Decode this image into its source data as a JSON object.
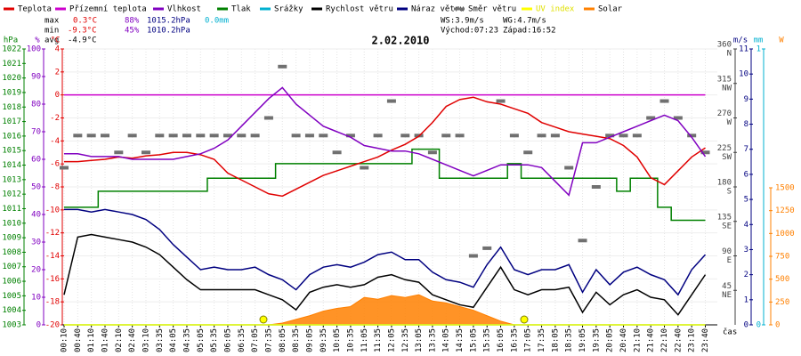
{
  "chart_data": {
    "type": "line",
    "title": "2.02.2010",
    "x_title": "čas",
    "grid": true,
    "categories": [
      "00:10",
      "00:40",
      "01:10",
      "01:40",
      "02:10",
      "02:40",
      "03:10",
      "03:35",
      "04:05",
      "04:35",
      "05:05",
      "05:35",
      "06:05",
      "06:35",
      "07:05",
      "07:35",
      "08:05",
      "08:35",
      "09:05",
      "09:35",
      "10:05",
      "10:35",
      "11:05",
      "11:35",
      "12:05",
      "12:35",
      "13:05",
      "13:35",
      "14:05",
      "14:35",
      "15:05",
      "15:35",
      "16:05",
      "16:35",
      "17:05",
      "17:35",
      "18:05",
      "18:35",
      "19:05",
      "19:35",
      "20:05",
      "20:40",
      "21:10",
      "21:40",
      "22:10",
      "22:40",
      "23:10",
      "23:40"
    ],
    "stats": {
      "max": {
        "label": "max",
        "temp": "0.3°C",
        "hum": "88%",
        "press": "1015.2hPa",
        "rain": "0.0mm"
      },
      "min": {
        "label": "min",
        "temp": "-9.3°C",
        "hum": "45%",
        "press": "1010.2hPa"
      },
      "avg": {
        "label": "avg",
        "temp": "-4.9°C"
      },
      "ws": "WS:3.9m/s",
      "wg": "WG:4.7m/s",
      "sunrise": "Východ:07:23",
      "sunset": "Západ:16:52"
    },
    "axes": {
      "hpa": {
        "title": "hPa",
        "color": "#008000",
        "ylim": [
          1003,
          1022
        ],
        "yticks": [
          1003,
          1004,
          1005,
          1006,
          1007,
          1008,
          1009,
          1010,
          1011,
          1012,
          1013,
          1014,
          1015,
          1016,
          1017,
          1018,
          1019,
          1020,
          1021,
          1022
        ]
      },
      "pct": {
        "title": "%",
        "color": "#8000c0",
        "ylim": [
          0,
          100
        ],
        "yticks": [
          0,
          10,
          20,
          30,
          40,
          50,
          60,
          70,
          80,
          90,
          100
        ]
      },
      "c": {
        "title": "°C",
        "color": "#e00000",
        "ylim": [
          -20,
          4
        ],
        "yticks": [
          -20,
          -18,
          -16,
          -14,
          -12,
          -10,
          -8,
          -6,
          -4,
          -2,
          0,
          2,
          4
        ]
      },
      "dir": {
        "title": "",
        "color": "#404040",
        "ylim": [
          0,
          360
        ],
        "yticks": [
          45,
          90,
          135,
          180,
          225,
          270,
          315,
          360
        ],
        "names": [
          "NE",
          "E",
          "SE",
          "S",
          "SW",
          "W",
          "NW",
          "N"
        ]
      },
      "ms": {
        "title": "m/s",
        "color": "#000080",
        "ylim": [
          0,
          11
        ],
        "yticks": [
          0,
          1,
          2,
          3,
          4,
          5,
          6,
          7,
          8,
          9,
          10,
          11
        ]
      },
      "mm": {
        "title": "mm",
        "color": "#00b0d0",
        "ylim": [
          0,
          1
        ],
        "yticks": [
          0,
          1
        ]
      },
      "w": {
        "title": "W",
        "color": "#ff8000",
        "ylim": [
          0,
          1500
        ],
        "yticks": [
          0,
          250,
          500,
          750,
          1000,
          1250,
          1500
        ]
      }
    },
    "series": [
      {
        "name": "Teplota",
        "color": "#e00000",
        "axis": "c",
        "style": "line",
        "values": [
          -5.8,
          -5.8,
          -5.7,
          -5.6,
          -5.4,
          -5.5,
          -5.3,
          -5.2,
          -5.0,
          -5.0,
          -5.2,
          -5.6,
          -6.8,
          -7.4,
          -8.0,
          -8.6,
          -8.8,
          -8.2,
          -7.6,
          -7.0,
          -6.6,
          -6.2,
          -5.8,
          -5.4,
          -4.8,
          -4.3,
          -3.6,
          -2.4,
          -1.0,
          -0.4,
          -0.2,
          -0.6,
          -0.8,
          -1.2,
          -1.6,
          -2.4,
          -2.8,
          -3.2,
          -3.4,
          -3.6,
          -3.8,
          -4.4,
          -5.4,
          -7.2,
          -7.8,
          -6.6,
          -5.4,
          -4.6
        ]
      },
      {
        "name": "Přízemní teplota",
        "color": "#cc00cc",
        "axis": "c",
        "style": "line",
        "values": [
          0,
          0,
          0,
          0,
          0,
          0,
          0,
          0,
          0,
          0,
          0,
          0,
          0,
          0,
          0,
          0,
          0,
          0,
          0,
          0,
          0,
          0,
          0,
          0,
          0,
          0,
          0,
          0,
          0,
          0,
          0,
          0,
          0,
          0,
          0,
          0,
          0,
          0,
          0,
          0,
          0,
          0,
          0,
          0,
          0,
          0,
          0,
          0
        ]
      },
      {
        "name": "Vlhkost",
        "color": "#8000c0",
        "axis": "pct",
        "style": "line",
        "values": [
          62,
          62,
          61,
          61,
          61,
          60,
          60,
          60,
          60,
          61,
          62,
          64,
          67,
          72,
          77,
          82,
          86,
          80,
          76,
          72,
          70,
          68,
          65,
          64,
          63,
          63,
          62,
          60,
          58,
          56,
          54,
          56,
          58,
          58,
          58,
          57,
          52,
          47,
          66,
          66,
          68,
          70,
          72,
          74,
          76,
          74,
          68,
          61
        ]
      },
      {
        "name": "Tlak",
        "color": "#008000",
        "axis": "hpa",
        "style": "step",
        "values": [
          1011.1,
          1011.1,
          1011.1,
          1012.2,
          1012.2,
          1012.2,
          1012.2,
          1012.2,
          1012.2,
          1012.2,
          1012.2,
          1013.1,
          1013.1,
          1013.1,
          1013.1,
          1013.1,
          1014.1,
          1014.1,
          1014.1,
          1014.1,
          1014.1,
          1014.1,
          1014.1,
          1014.1,
          1014.1,
          1014.1,
          1015.1,
          1015.1,
          1013.1,
          1013.1,
          1013.1,
          1013.1,
          1013.1,
          1014.1,
          1013.1,
          1013.1,
          1013.1,
          1013.1,
          1013.1,
          1013.1,
          1013.1,
          1012.2,
          1013.1,
          1013.1,
          1011.1,
          1010.2,
          1010.2,
          1010.2
        ]
      },
      {
        "name": "Srážky",
        "color": "#00b0d0",
        "axis": "mm",
        "style": "line",
        "values": [
          0,
          0,
          0,
          0,
          0,
          0,
          0,
          0,
          0,
          0,
          0,
          0,
          0,
          0,
          0,
          0,
          0,
          0,
          0,
          0,
          0,
          0,
          0,
          0,
          0,
          0,
          0,
          0,
          0,
          0,
          0,
          0,
          0,
          0,
          0,
          0,
          0,
          0,
          0,
          0,
          0,
          0,
          0,
          0,
          0,
          0,
          0,
          0
        ]
      },
      {
        "name": "Rychlost větru",
        "color": "#000000",
        "axis": "ms",
        "style": "line",
        "values": [
          1.2,
          3.5,
          3.6,
          3.5,
          3.4,
          3.3,
          3.1,
          2.8,
          2.3,
          1.8,
          1.4,
          1.4,
          1.4,
          1.4,
          1.4,
          1.2,
          1.0,
          0.6,
          1.3,
          1.5,
          1.6,
          1.5,
          1.6,
          1.9,
          2.0,
          1.8,
          1.7,
          1.2,
          1.0,
          0.8,
          0.7,
          1.5,
          2.3,
          1.4,
          1.2,
          1.4,
          1.4,
          1.5,
          0.5,
          1.3,
          0.8,
          1.2,
          1.4,
          1.1,
          1.0,
          0.4,
          1.2,
          2.0
        ]
      },
      {
        "name": "Náraz větru",
        "color": "#000080",
        "axis": "ms",
        "style": "line",
        "values": [
          4.6,
          4.6,
          4.5,
          4.6,
          4.5,
          4.4,
          4.2,
          3.8,
          3.2,
          2.7,
          2.2,
          2.3,
          2.2,
          2.2,
          2.3,
          2.0,
          1.8,
          1.4,
          2.0,
          2.3,
          2.4,
          2.3,
          2.5,
          2.8,
          2.9,
          2.6,
          2.6,
          2.1,
          1.8,
          1.7,
          1.5,
          2.4,
          3.1,
          2.2,
          2.0,
          2.2,
          2.2,
          2.4,
          1.3,
          2.2,
          1.6,
          2.1,
          2.3,
          2.0,
          1.8,
          1.2,
          2.2,
          2.8
        ]
      },
      {
        "name": "Směr větru",
        "color": "#707070",
        "axis": "dir",
        "style": "dash",
        "values": [
          205,
          247,
          247,
          247,
          225,
          247,
          225,
          247,
          247,
          247,
          247,
          247,
          247,
          247,
          247,
          270,
          337,
          247,
          247,
          247,
          225,
          247,
          205,
          247,
          292,
          247,
          247,
          225,
          247,
          247,
          90,
          100,
          292,
          247,
          225,
          247,
          247,
          205,
          110,
          180,
          247,
          247,
          247,
          270,
          292,
          270,
          247,
          225
        ]
      },
      {
        "name": "UV index",
        "color": "#ffff00",
        "axis": "mm",
        "style": "line",
        "values": [
          0,
          0,
          0,
          0,
          0,
          0,
          0,
          0,
          0,
          0,
          0,
          0,
          0,
          0,
          0,
          0,
          0,
          0,
          0,
          0,
          0,
          0,
          0,
          0,
          0,
          0,
          0,
          0,
          0,
          0,
          0,
          0,
          0,
          0,
          0,
          0,
          0,
          0,
          0,
          0,
          0,
          0,
          0,
          0,
          0,
          0,
          0,
          0
        ]
      },
      {
        "name": "Solar",
        "color": "#ff8000",
        "axis": "w",
        "style": "area",
        "values": [
          0,
          0,
          0,
          0,
          0,
          0,
          0,
          0,
          0,
          0,
          0,
          0,
          0,
          0,
          0,
          0,
          20,
          60,
          100,
          150,
          180,
          200,
          300,
          280,
          320,
          300,
          330,
          260,
          240,
          200,
          160,
          100,
          40,
          0,
          0,
          0,
          0,
          0,
          0,
          0,
          0,
          0,
          0,
          0,
          0,
          0,
          0,
          0
        ]
      }
    ]
  }
}
